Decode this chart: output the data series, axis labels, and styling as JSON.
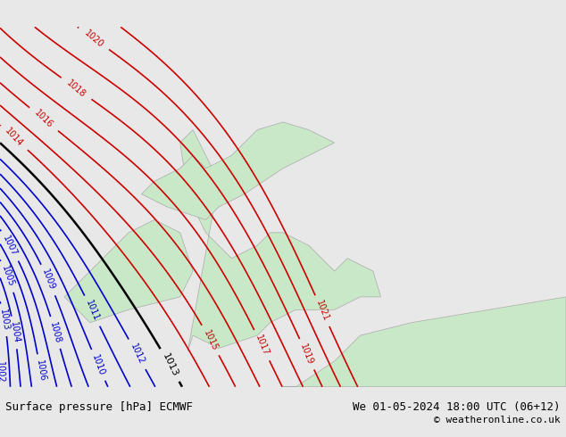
{
  "title_left": "Surface pressure [hPa] ECMWF",
  "title_right": "We 01-05-2024 18:00 UTC (06+12)",
  "copyright": "© weatheronline.co.uk",
  "bg_color": "#e8e8e8",
  "land_color": "#c8e8c8",
  "figsize": [
    6.34,
    4.9
  ],
  "dpi": 100,
  "pressure_min": 999,
  "pressure_max": 1020,
  "blue_contour_color": "#0000cc",
  "red_contour_color": "#cc0000",
  "black_contour_color": "#000000",
  "black_contour_value": 1013,
  "blue_max": 1012,
  "red_min": 1014,
  "label_fontsize": 7,
  "bottom_bar_color": "#d0d0d0",
  "bottom_text_color": "#000000"
}
